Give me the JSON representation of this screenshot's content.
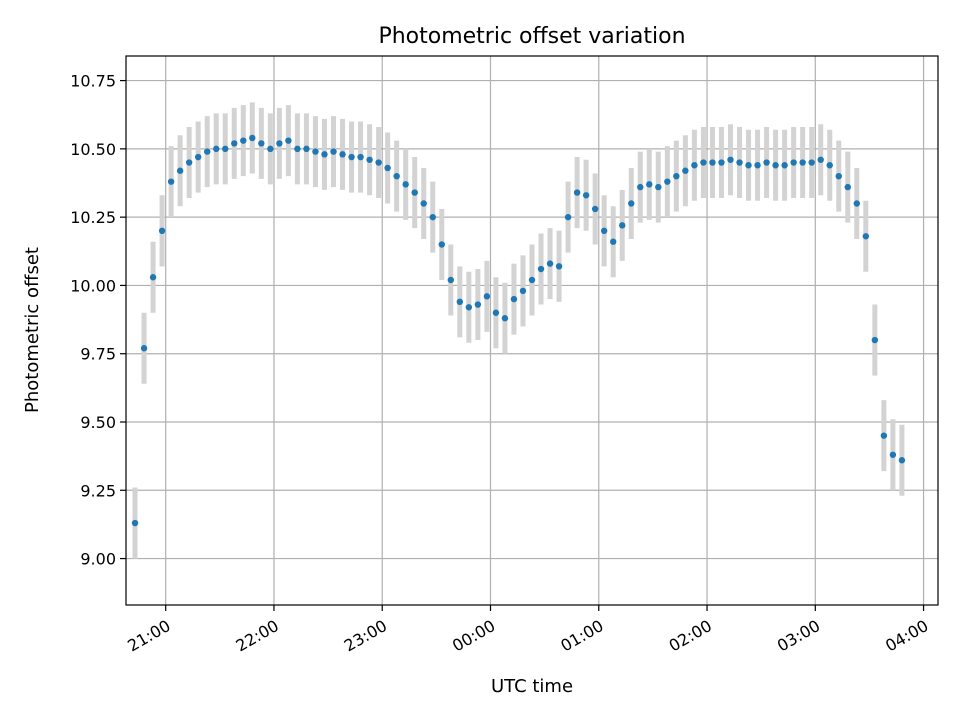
{
  "chart_data": {
    "type": "scatter",
    "title": "Photometric offset variation",
    "xlabel": "UTC time",
    "ylabel": "Photometric offset",
    "x_tick_labels": [
      "21:00",
      "22:00",
      "23:00",
      "00:00",
      "01:00",
      "02:00",
      "03:00",
      "04:00"
    ],
    "y_tick_labels": [
      "9.00",
      "9.25",
      "9.50",
      "9.75",
      "10.00",
      "10.25",
      "10.50",
      "10.75"
    ],
    "y_ticks": [
      9.0,
      9.25,
      9.5,
      9.75,
      10.0,
      10.25,
      10.5,
      10.75
    ],
    "xlim": [
      "20:38",
      "04:08"
    ],
    "ylim": [
      8.83,
      10.84
    ],
    "grid": true,
    "point_color": "#1f77b4",
    "errorbar_color": "#d3d3d3",
    "error": 0.13,
    "series": [
      {
        "x": [
          "20:43",
          "20:48",
          "20:53",
          "20:58",
          "21:03",
          "21:08",
          "21:13",
          "21:18",
          "21:23",
          "21:28",
          "21:33",
          "21:38",
          "21:43",
          "21:48",
          "21:53",
          "21:58",
          "22:03",
          "22:08",
          "22:13",
          "22:18",
          "22:23",
          "22:28",
          "22:33",
          "22:38",
          "22:43",
          "22:48",
          "22:53",
          "22:58",
          "23:03",
          "23:08",
          "23:13",
          "23:18",
          "23:23",
          "23:28",
          "23:33",
          "23:38",
          "23:43",
          "23:48",
          "23:53",
          "23:58",
          "00:03",
          "00:08",
          "00:13",
          "00:18",
          "00:23",
          "00:28",
          "00:33",
          "00:38",
          "00:43",
          "00:48",
          "00:53",
          "00:58",
          "01:03",
          "01:08",
          "01:13",
          "01:18",
          "01:23",
          "01:28",
          "01:33",
          "01:38",
          "01:43",
          "01:48",
          "01:53",
          "01:58",
          "02:03",
          "02:08",
          "02:13",
          "02:18",
          "02:23",
          "02:28",
          "02:33",
          "02:38",
          "02:43",
          "02:48",
          "02:53",
          "02:58",
          "03:03",
          "03:08",
          "03:13",
          "03:18",
          "03:23",
          "03:28",
          "03:33",
          "03:38",
          "03:43",
          "03:48"
        ],
        "y": [
          9.13,
          9.77,
          10.03,
          10.2,
          10.38,
          10.42,
          10.45,
          10.47,
          10.49,
          10.5,
          10.5,
          10.52,
          10.53,
          10.54,
          10.52,
          10.5,
          10.52,
          10.53,
          10.5,
          10.5,
          10.49,
          10.48,
          10.49,
          10.48,
          10.47,
          10.47,
          10.46,
          10.45,
          10.43,
          10.4,
          10.37,
          10.34,
          10.3,
          10.25,
          10.15,
          10.02,
          9.94,
          9.92,
          9.93,
          9.96,
          9.9,
          9.88,
          9.95,
          9.98,
          10.02,
          10.06,
          10.08,
          10.07,
          10.25,
          10.34,
          10.33,
          10.28,
          10.2,
          10.16,
          10.22,
          10.3,
          10.36,
          10.37,
          10.36,
          10.38,
          10.4,
          10.42,
          10.44,
          10.45,
          10.45,
          10.45,
          10.46,
          10.45,
          10.44,
          10.44,
          10.45,
          10.44,
          10.44,
          10.45,
          10.45,
          10.45,
          10.46,
          10.44,
          10.4,
          10.36,
          10.3,
          10.18,
          9.8,
          9.45,
          9.38,
          9.36
        ]
      }
    ]
  }
}
